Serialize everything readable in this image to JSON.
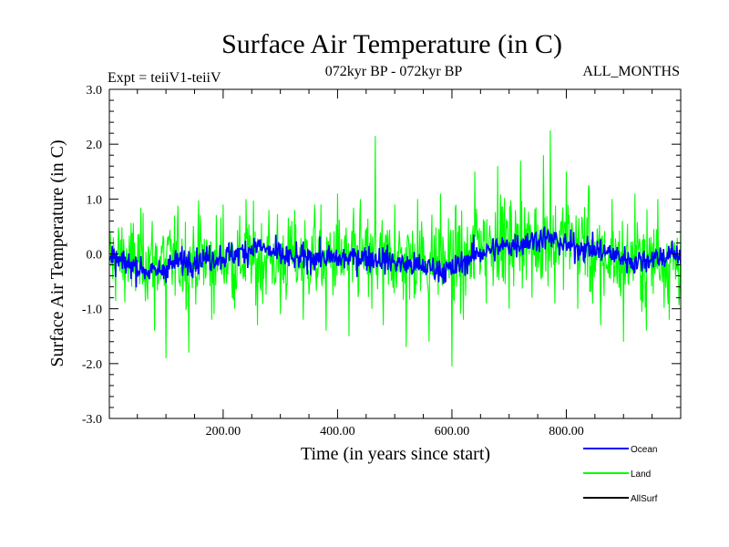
{
  "chart_data": {
    "type": "line",
    "title": "Surface Air Temperature (in C)",
    "subtitle": "072kyr BP - 072kyr BP",
    "left_label": "Expt = teiiV1-teiiV",
    "right_label": "ALL_MONTHS",
    "xlabel": "Time (in years since start)",
    "ylabel": "Surface Air Temperature (in C)",
    "xlim": [
      1,
      1000
    ],
    "ylim": [
      -3.0,
      3.0
    ],
    "x_ticks": [
      200,
      400,
      600,
      800
    ],
    "x_tick_labels": [
      "200.00",
      "400.00",
      "600.00",
      "800.00"
    ],
    "y_ticks": [
      -3,
      -2,
      -1,
      0,
      1,
      2,
      3
    ],
    "y_tick_labels": [
      "-3.0",
      "-2.0",
      "-1.0",
      "0.0",
      "1.0",
      "2.0",
      "3.0"
    ],
    "grid": false,
    "legend_position": "bottom-right",
    "series": [
      {
        "name": "Land",
        "color": "#00ff00",
        "x": [
          1,
          40,
          80,
          100,
          120,
          140,
          160,
          180,
          200,
          220,
          240,
          260,
          280,
          300,
          320,
          340,
          360,
          380,
          400,
          420,
          440,
          460,
          466,
          480,
          500,
          520,
          540,
          560,
          580,
          600,
          610,
          620,
          640,
          660,
          680,
          700,
          720,
          740,
          760,
          772,
          780,
          800,
          820,
          840,
          860,
          880,
          900,
          920,
          940,
          960,
          980,
          1000
        ],
        "values": [
          0.0,
          -0.6,
          -1.4,
          -1.9,
          0.5,
          -1.8,
          0.7,
          -1.2,
          0.9,
          -1.0,
          1.0,
          -1.3,
          0.8,
          -1.1,
          0.6,
          -1.2,
          0.9,
          -1.4,
          1.1,
          -1.5,
          1.0,
          -1.0,
          2.15,
          -1.3,
          0.9,
          -1.7,
          1.0,
          -1.6,
          1.1,
          -2.05,
          0.4,
          -1.2,
          1.5,
          -0.9,
          1.6,
          -1.0,
          1.7,
          -0.8,
          1.8,
          2.25,
          -0.9,
          1.5,
          -1.0,
          1.2,
          -1.3,
          1.0,
          -1.6,
          1.1,
          -1.4,
          1.0,
          -1.2,
          0.5
        ]
      },
      {
        "name": "Ocean",
        "color": "#0000ff",
        "x": [
          1,
          40,
          80,
          120,
          160,
          200,
          240,
          260,
          280,
          320,
          360,
          400,
          440,
          480,
          520,
          560,
          600,
          640,
          680,
          720,
          760,
          780,
          800,
          840,
          880,
          920,
          960,
          1000
        ],
        "values": [
          -0.1,
          -0.2,
          -0.35,
          -0.15,
          -0.1,
          -0.05,
          0.05,
          0.15,
          0.05,
          -0.1,
          -0.05,
          -0.1,
          -0.05,
          -0.1,
          -0.2,
          -0.25,
          -0.3,
          0.0,
          0.1,
          0.2,
          0.3,
          0.25,
          0.15,
          0.1,
          0.0,
          -0.15,
          -0.05,
          0.0
        ]
      },
      {
        "name": "AllSurf",
        "color": "#000000",
        "x": [],
        "values": []
      }
    ]
  }
}
